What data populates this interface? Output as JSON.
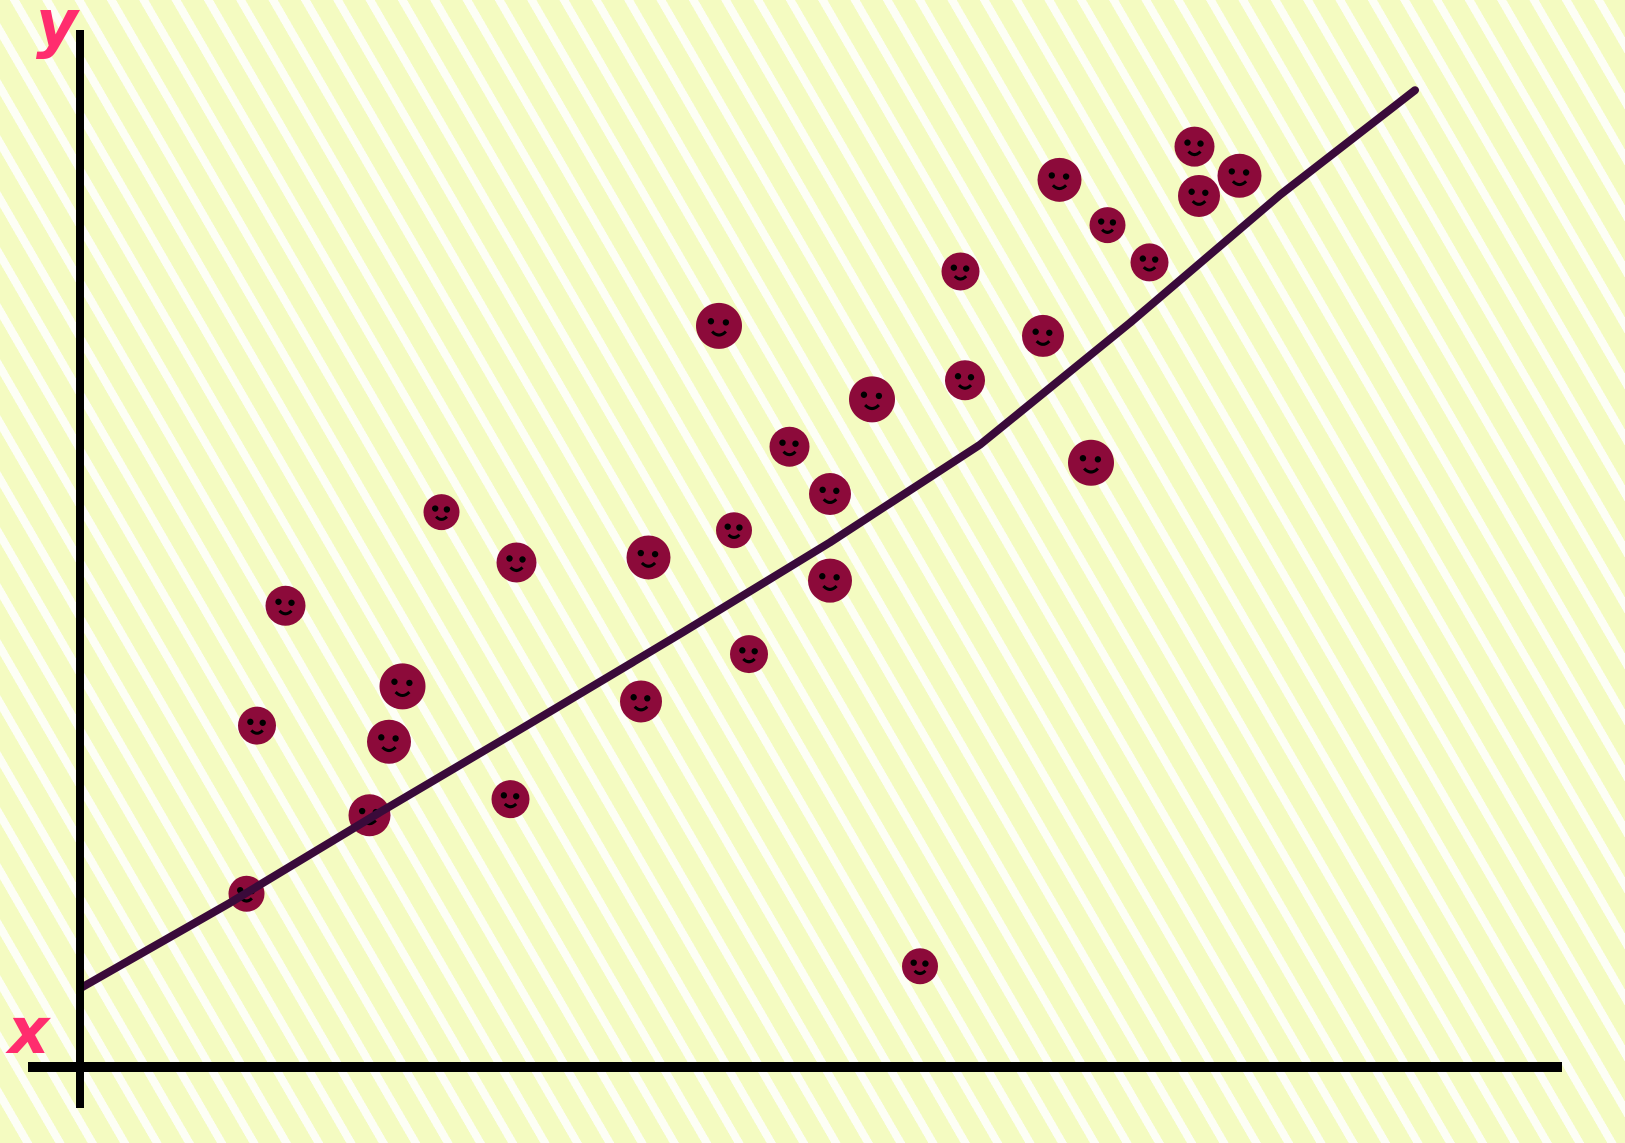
{
  "chart_data": {
    "type": "scatter",
    "title": "",
    "xlabel": "x",
    "ylabel": "y",
    "xlim": [
      0,
      100
    ],
    "ylim": [
      0,
      100
    ],
    "grid": false,
    "legend": "none",
    "colors": {
      "point": "#8c0a3a",
      "trend": "#3a0a3a",
      "axis": "#000000",
      "label": "#ff2d6e"
    },
    "points": [
      {
        "x": 11.1,
        "y": 17.2
      },
      {
        "x": 11.8,
        "y": 33.9
      },
      {
        "x": 13.7,
        "y": 45.8
      },
      {
        "x": 19.3,
        "y": 25.0
      },
      {
        "x": 20.6,
        "y": 32.3
      },
      {
        "x": 21.5,
        "y": 37.8
      },
      {
        "x": 24.1,
        "y": 55.1
      },
      {
        "x": 28.7,
        "y": 26.6
      },
      {
        "x": 29.1,
        "y": 50.1
      },
      {
        "x": 37.4,
        "y": 36.3
      },
      {
        "x": 37.9,
        "y": 50.6
      },
      {
        "x": 42.6,
        "y": 73.6
      },
      {
        "x": 43.6,
        "y": 53.3
      },
      {
        "x": 44.6,
        "y": 41.0
      },
      {
        "x": 47.3,
        "y": 61.6
      },
      {
        "x": 50.0,
        "y": 56.9
      },
      {
        "x": 50.0,
        "y": 48.3
      },
      {
        "x": 52.8,
        "y": 66.3
      },
      {
        "x": 56.0,
        "y": 10.0
      },
      {
        "x": 58.7,
        "y": 79.0
      },
      {
        "x": 59.0,
        "y": 68.2
      },
      {
        "x": 64.2,
        "y": 72.6
      },
      {
        "x": 65.3,
        "y": 88.1
      },
      {
        "x": 67.4,
        "y": 60.0
      },
      {
        "x": 68.5,
        "y": 83.6
      },
      {
        "x": 71.3,
        "y": 79.9
      },
      {
        "x": 74.3,
        "y": 91.4
      },
      {
        "x": 74.6,
        "y": 86.5
      },
      {
        "x": 77.3,
        "y": 88.5
      }
    ],
    "trend_line": [
      {
        "x": 0,
        "y": 7.8
      },
      {
        "x": 10,
        "y": 16.3
      },
      {
        "x": 20,
        "y": 25.3
      },
      {
        "x": 30,
        "y": 34.1
      },
      {
        "x": 40,
        "y": 43.0
      },
      {
        "x": 50,
        "y": 52.1
      },
      {
        "x": 60,
        "y": 61.8
      },
      {
        "x": 70,
        "y": 73.9
      },
      {
        "x": 80,
        "y": 86.6
      },
      {
        "x": 89,
        "y": 97.0
      }
    ]
  }
}
